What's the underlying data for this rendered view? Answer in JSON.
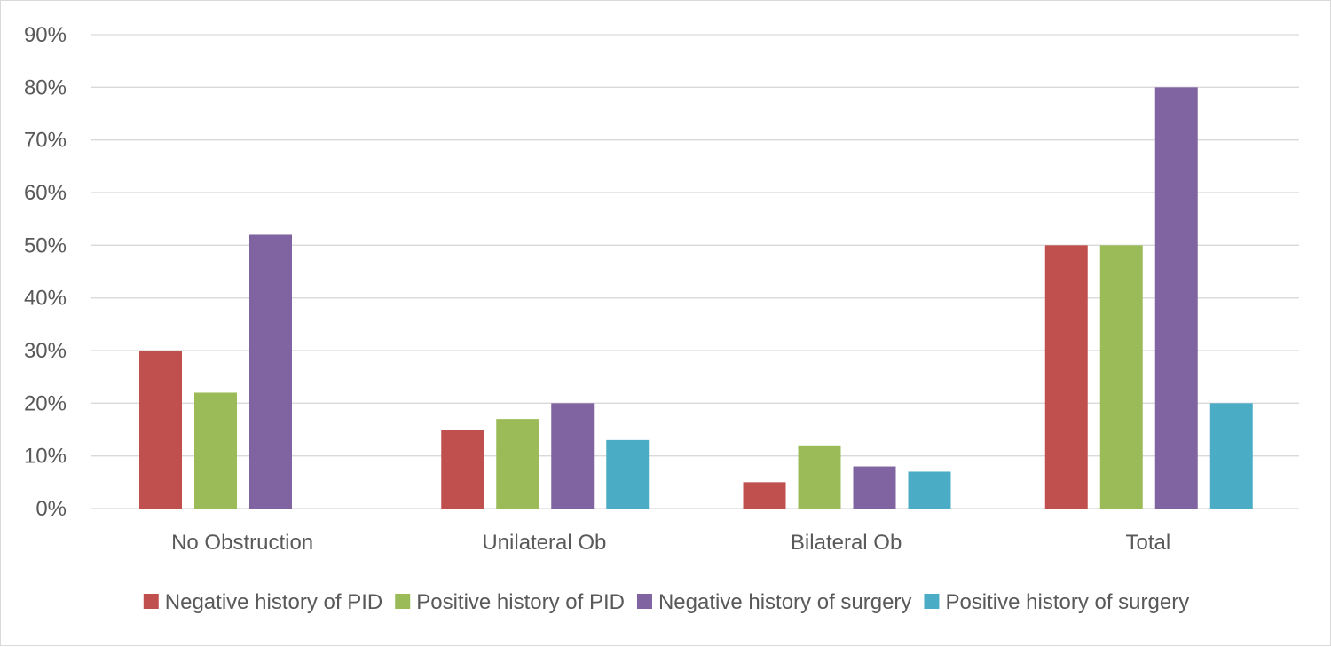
{
  "chart_data": {
    "type": "bar",
    "categories": [
      "No Obstruction",
      "Unilateral Ob",
      "Bilateral Ob",
      "Total"
    ],
    "series": [
      {
        "name": "Negative  history of PID",
        "color": "#c0504d",
        "values": [
          30,
          15,
          5,
          50
        ]
      },
      {
        "name": "Positive history of PID",
        "color": "#9bbb59",
        "values": [
          22,
          17,
          12,
          50
        ]
      },
      {
        "name": "Negative history of surgery",
        "color": "#8064a2",
        "values": [
          52,
          20,
          8,
          80
        ]
      },
      {
        "name": "Positive history of surgery",
        "color": "#4bacc6",
        "values": [
          0,
          13,
          7,
          20
        ]
      }
    ],
    "ylim": [
      0,
      90
    ],
    "yticks": [
      "0%",
      "10%",
      "20%",
      "30%",
      "40%",
      "50%",
      "60%",
      "70%",
      "80%",
      "90%"
    ],
    "grid": true,
    "legend_position": "bottom",
    "gridline_color": "#d9d9d9",
    "text_color": "#595959"
  }
}
